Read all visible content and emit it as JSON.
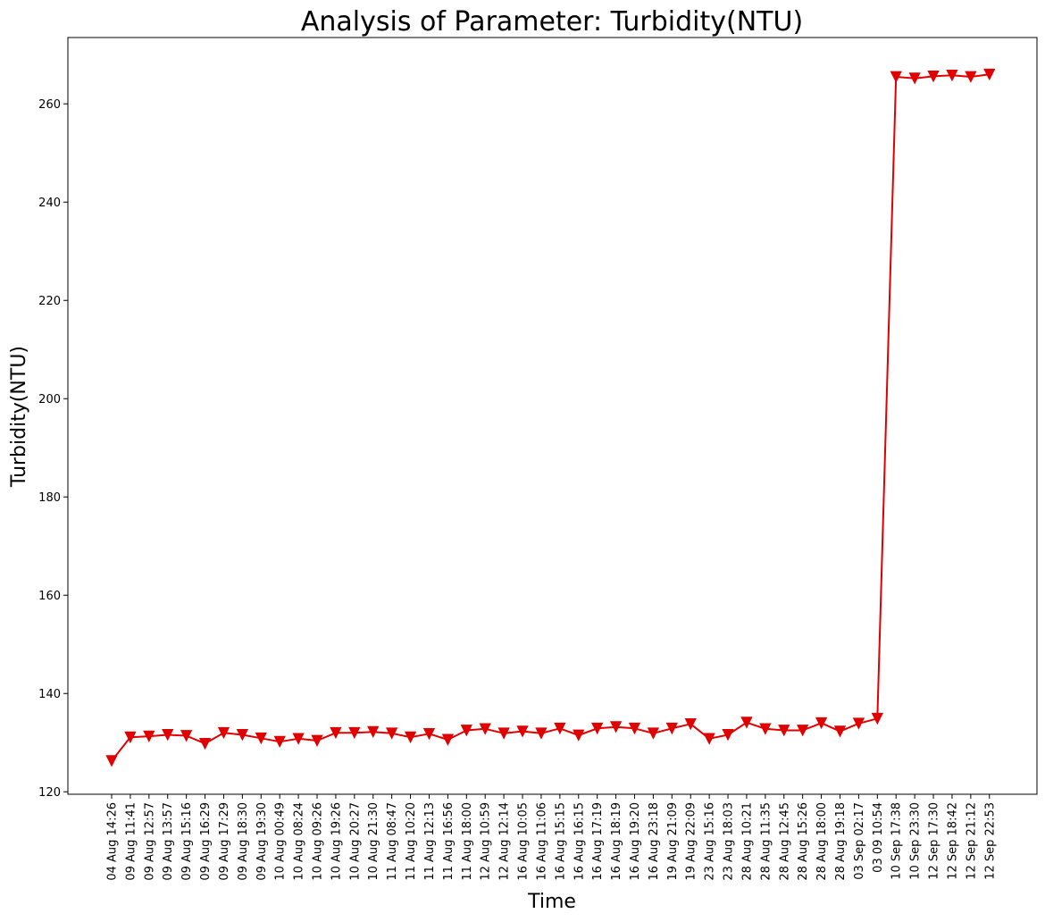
{
  "chart_data": {
    "type": "line",
    "title": "Analysis of Parameter: Turbidity(NTU)",
    "xlabel": "Time",
    "ylabel": "Turbidity(NTU)",
    "ylim": [
      119.5,
      273.5
    ],
    "yticks": [
      120,
      140,
      160,
      180,
      200,
      220,
      240,
      260
    ],
    "grid": false,
    "legend": "none",
    "line_color": "#e00000",
    "marker": "triangle-down",
    "categories": [
      "04 Aug 14:26",
      "09 Aug 11:41",
      "09 Aug 12:57",
      "09 Aug 13:57",
      "09 Aug 15:16",
      "09 Aug 16:29",
      "09 Aug 17:29",
      "09 Aug 18:30",
      "09 Aug 19:30",
      "10 Aug 00:49",
      "10 Aug 08:24",
      "10 Aug 09:26",
      "10 Aug 19:26",
      "10 Aug 20:27",
      "10 Aug 21:30",
      "11 Aug 08:47",
      "11 Aug 10:20",
      "11 Aug 12:13",
      "11 Aug 16:56",
      "11 Aug 18:00",
      "12 Aug 10:59",
      "12 Aug 12:14",
      "16 Aug 10:05",
      "16 Aug 11:06",
      "16 Aug 15:15",
      "16 Aug 16:15",
      "16 Aug 17:19",
      "16 Aug 18:19",
      "16 Aug 19:20",
      "16 Aug 23:18",
      "19 Aug 21:09",
      "19 Aug 22:09",
      "23 Aug 15:16",
      "23 Aug 18:03",
      "28 Aug 10:21",
      "28 Aug 11:35",
      "28 Aug 12:45",
      "28 Aug 15:26",
      "28 Aug 18:00",
      "28 Aug 19:18",
      "03 Sep 02:17",
      "03 09 10:54",
      "10 Sep 17:38",
      "10 Sep 23:30",
      "12 Sep 17:30",
      "12 Sep 18:42",
      "12 Sep 21:12",
      "12 Sep 22:53"
    ],
    "series": [
      {
        "values": [
          126.3,
          131.1,
          131.3,
          131.6,
          131.4,
          129.8,
          132.0,
          131.6,
          130.9,
          130.2,
          130.8,
          130.4,
          132.0,
          132.0,
          132.2,
          131.9,
          131.1,
          131.8,
          130.6,
          132.5,
          132.8,
          131.9,
          132.3,
          131.9,
          132.9,
          131.5,
          132.9,
          133.2,
          132.9,
          131.9,
          132.9,
          133.8,
          130.8,
          131.6,
          134.1,
          132.8,
          132.5,
          132.5,
          134.0,
          132.3,
          133.9,
          134.9,
          265.5,
          265.2,
          265.6,
          265.8,
          265.5,
          266.0
        ]
      }
    ]
  }
}
